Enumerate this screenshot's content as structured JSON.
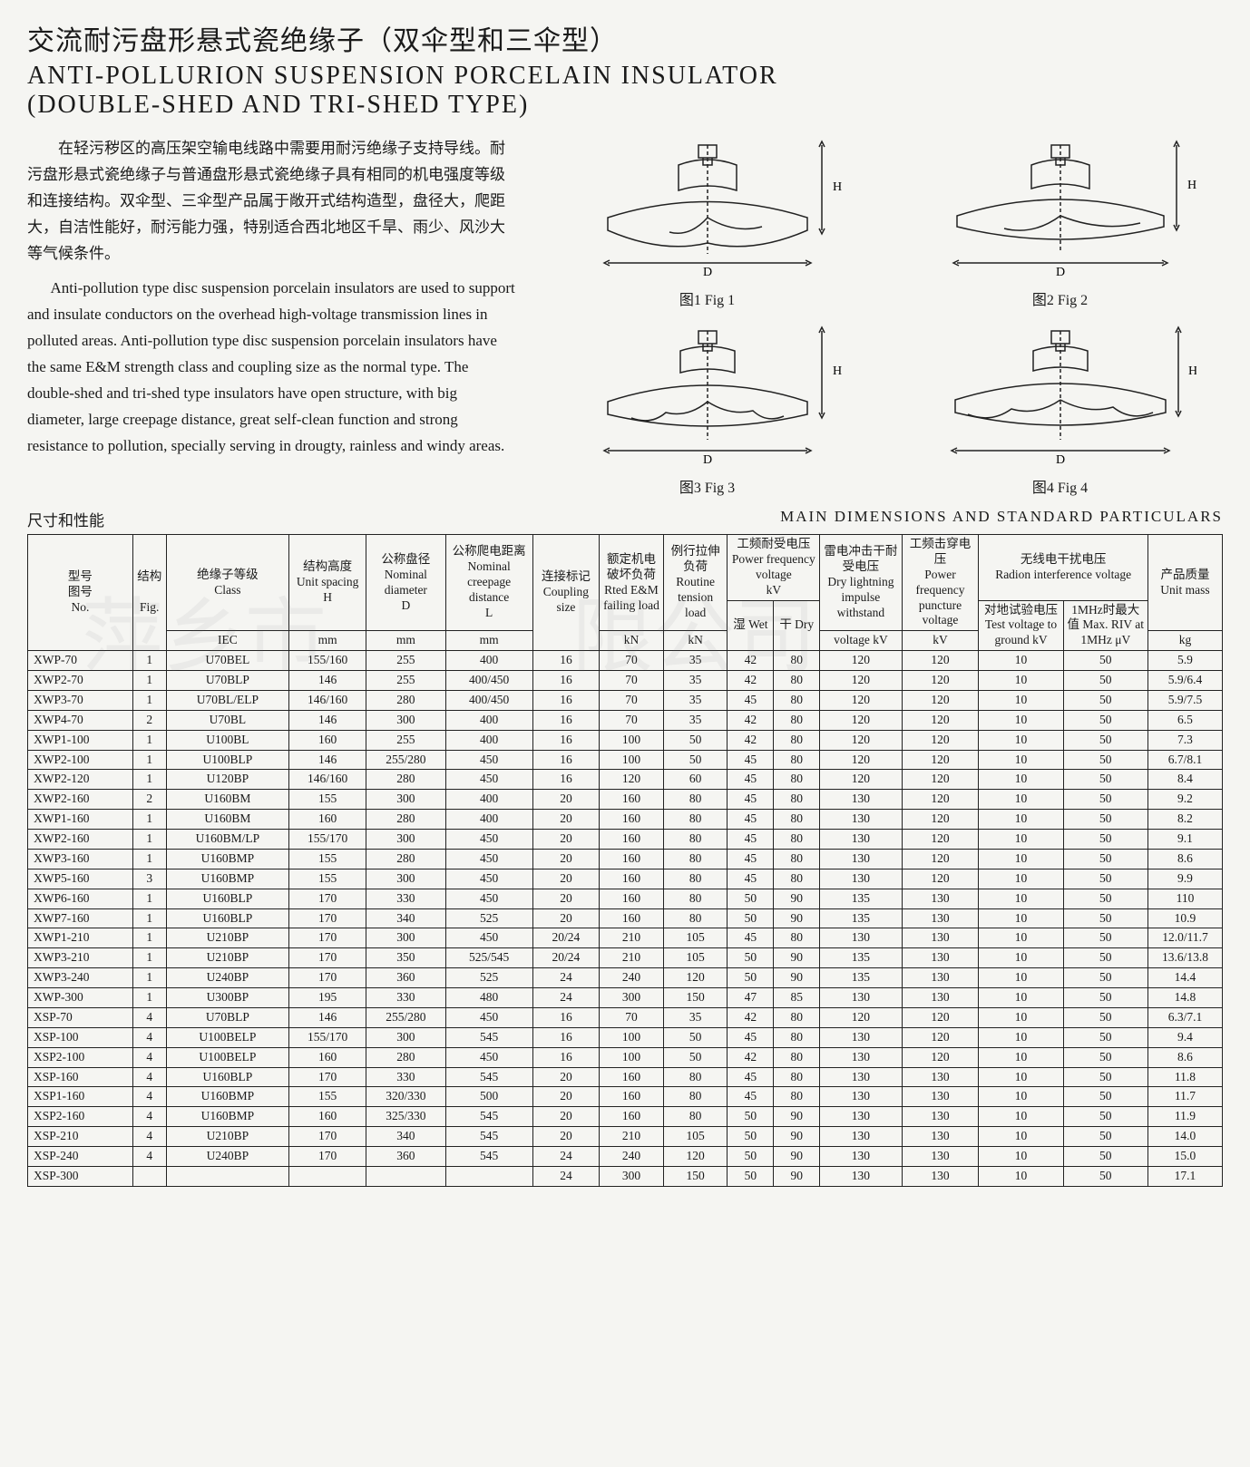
{
  "title_cn": "交流耐污盘形悬式瓷绝缘子（双伞型和三伞型）",
  "title_en1": "ANTI-POLLURION SUSPENSION PORCELAIN INSULATOR",
  "title_en2": "(DOUBLE-SHED AND TRI-SHED TYPE)",
  "para_cn": "在轻污秽区的高压架空输电线路中需要用耐污绝缘子支持导线。耐污盘形悬式瓷绝缘子与普通盘形悬式瓷绝缘子具有相同的机电强度等级和连接结构。双伞型、三伞型产品属于敞开式结构造型，盘径大，爬距大，自洁性能好，耐污能力强，特别适合西北地区千旱、雨少、风沙大等气候条件。",
  "para_en": "Anti-pollution type disc suspension porcelain insulators are used to support and insulate conductors on the overhead high-voltage transmission lines in polluted areas. Anti-pollution type disc suspension porcelain insulators have the same E&M strength class and coupling size as the normal type. The double-shed and tri-shed type insulators have open structure, with big diameter, large creepage distance, great self-clean function and strong resistance to pollution, specially serving in drougty, rainless and windy areas.",
  "figs": {
    "f1": "图1  Fig 1",
    "f2": "图2  Fig 2",
    "f3": "图3  Fig 3",
    "f4": "图4  Fig 4"
  },
  "dims_left": "尺寸和性能",
  "dims_right": "MAIN DIMENSIONS AND STANDARD PARTICULARS",
  "watermark": "萍乡市　　　限公司",
  "header": {
    "c0a": "型号",
    "c0b": "图号",
    "c0c": "No.",
    "c1a": "结构",
    "c1b": "Fig.",
    "c2a": "绝缘子等级",
    "c2b": "Class",
    "c2c": "IEC",
    "c3a": "结构高度",
    "c3b": "Unit spacing",
    "c3c": "H",
    "c3d": "mm",
    "c4a": "公称盘径",
    "c4b": "Nominal diameter",
    "c4c": "D",
    "c4d": "mm",
    "c5a": "公称爬电距离",
    "c5b": "Nominal creepage distance",
    "c5c": "L",
    "c5d": "mm",
    "c6a": "连接标记",
    "c6b": "Coupling size",
    "c7a": "额定机电破坏负荷",
    "c7b": "Rted E&M failing load",
    "c7c": "kN",
    "c8a": "例行拉伸负荷",
    "c8b": "Routine tension load",
    "c8c": "kN",
    "c9a": "工频耐受电压 Power frequency voltage",
    "c9b": "kV",
    "c9wet": "湿 Wet",
    "c9dry": "干 Dry",
    "c10a": "雷电冲击干耐受电压",
    "c10b": "Dry lightning impulse withstand",
    "c10c": "voltage kV",
    "c11a": "工频击穿电压",
    "c11b": "Power frequency puncture voltage",
    "c11c": "kV",
    "c12a": "无线电干扰电压",
    "c12b": "Radion interference voltage",
    "c12ca": "对地试验电压 Test voltage to ground kV",
    "c12da": "1MHz时最大值 Max. RIV at 1MHz μV",
    "c13a": "产品质量",
    "c13b": "Unit mass",
    "c13c": "kg"
  },
  "rows": [
    [
      "XWP-70",
      "1",
      "U70BEL",
      "155/160",
      "255",
      "400",
      "16",
      "70",
      "35",
      "42",
      "80",
      "120",
      "120",
      "10",
      "50",
      "5.9"
    ],
    [
      "XWP2-70",
      "1",
      "U70BLP",
      "146",
      "255",
      "400/450",
      "16",
      "70",
      "35",
      "42",
      "80",
      "120",
      "120",
      "10",
      "50",
      "5.9/6.4"
    ],
    [
      "XWP3-70",
      "1",
      "U70BL/ELP",
      "146/160",
      "280",
      "400/450",
      "16",
      "70",
      "35",
      "45",
      "80",
      "120",
      "120",
      "10",
      "50",
      "5.9/7.5"
    ],
    [
      "XWP4-70",
      "2",
      "U70BL",
      "146",
      "300",
      "400",
      "16",
      "70",
      "35",
      "42",
      "80",
      "120",
      "120",
      "10",
      "50",
      "6.5"
    ],
    [
      "XWP1-100",
      "1",
      "U100BL",
      "160",
      "255",
      "400",
      "16",
      "100",
      "50",
      "42",
      "80",
      "120",
      "120",
      "10",
      "50",
      "7.3"
    ],
    [
      "XWP2-100",
      "1",
      "U100BLP",
      "146",
      "255/280",
      "450",
      "16",
      "100",
      "50",
      "45",
      "80",
      "120",
      "120",
      "10",
      "50",
      "6.7/8.1"
    ],
    [
      "XWP2-120",
      "1",
      "U120BP",
      "146/160",
      "280",
      "450",
      "16",
      "120",
      "60",
      "45",
      "80",
      "120",
      "120",
      "10",
      "50",
      "8.4"
    ],
    [
      "XWP2-160",
      "2",
      "U160BM",
      "155",
      "300",
      "400",
      "20",
      "160",
      "80",
      "45",
      "80",
      "130",
      "120",
      "10",
      "50",
      "9.2"
    ],
    [
      "XWP1-160",
      "1",
      "U160BM",
      "160",
      "280",
      "400",
      "20",
      "160",
      "80",
      "45",
      "80",
      "130",
      "120",
      "10",
      "50",
      "8.2"
    ],
    [
      "XWP2-160",
      "1",
      "U160BM/LP",
      "155/170",
      "300",
      "450",
      "20",
      "160",
      "80",
      "45",
      "80",
      "130",
      "120",
      "10",
      "50",
      "9.1"
    ],
    [
      "XWP3-160",
      "1",
      "U160BMP",
      "155",
      "280",
      "450",
      "20",
      "160",
      "80",
      "45",
      "80",
      "130",
      "120",
      "10",
      "50",
      "8.6"
    ],
    [
      "XWP5-160",
      "3",
      "U160BMP",
      "155",
      "300",
      "450",
      "20",
      "160",
      "80",
      "45",
      "80",
      "130",
      "120",
      "10",
      "50",
      "9.9"
    ],
    [
      "XWP6-160",
      "1",
      "U160BLP",
      "170",
      "330",
      "450",
      "20",
      "160",
      "80",
      "50",
      "90",
      "135",
      "130",
      "10",
      "50",
      "110"
    ],
    [
      "XWP7-160",
      "1",
      "U160BLP",
      "170",
      "340",
      "525",
      "20",
      "160",
      "80",
      "50",
      "90",
      "135",
      "130",
      "10",
      "50",
      "10.9"
    ],
    [
      "XWP1-210",
      "1",
      "U210BP",
      "170",
      "300",
      "450",
      "20/24",
      "210",
      "105",
      "45",
      "80",
      "130",
      "130",
      "10",
      "50",
      "12.0/11.7"
    ],
    [
      "XWP3-210",
      "1",
      "U210BP",
      "170",
      "350",
      "525/545",
      "20/24",
      "210",
      "105",
      "50",
      "90",
      "135",
      "130",
      "10",
      "50",
      "13.6/13.8"
    ],
    [
      "XWP3-240",
      "1",
      "U240BP",
      "170",
      "360",
      "525",
      "24",
      "240",
      "120",
      "50",
      "90",
      "135",
      "130",
      "10",
      "50",
      "14.4"
    ],
    [
      "XWP-300",
      "1",
      "U300BP",
      "195",
      "330",
      "480",
      "24",
      "300",
      "150",
      "47",
      "85",
      "130",
      "130",
      "10",
      "50",
      "14.8"
    ],
    [
      "XSP-70",
      "4",
      "U70BLP",
      "146",
      "255/280",
      "450",
      "16",
      "70",
      "35",
      "42",
      "80",
      "120",
      "120",
      "10",
      "50",
      "6.3/7.1"
    ],
    [
      "XSP-100",
      "4",
      "U100BELP",
      "155/170",
      "300",
      "545",
      "16",
      "100",
      "50",
      "45",
      "80",
      "130",
      "120",
      "10",
      "50",
      "9.4"
    ],
    [
      "XSP2-100",
      "4",
      "U100BELP",
      "160",
      "280",
      "450",
      "16",
      "100",
      "50",
      "42",
      "80",
      "130",
      "120",
      "10",
      "50",
      "8.6"
    ],
    [
      "XSP-160",
      "4",
      "U160BLP",
      "170",
      "330",
      "545",
      "20",
      "160",
      "80",
      "45",
      "80",
      "130",
      "130",
      "10",
      "50",
      "11.8"
    ],
    [
      "XSP1-160",
      "4",
      "U160BMP",
      "155",
      "320/330",
      "500",
      "20",
      "160",
      "80",
      "45",
      "80",
      "130",
      "130",
      "10",
      "50",
      "11.7"
    ],
    [
      "XSP2-160",
      "4",
      "U160BMP",
      "160",
      "325/330",
      "545",
      "20",
      "160",
      "80",
      "50",
      "90",
      "130",
      "130",
      "10",
      "50",
      "11.9"
    ],
    [
      "XSP-210",
      "4",
      "U210BP",
      "170",
      "340",
      "545",
      "20",
      "210",
      "105",
      "50",
      "90",
      "130",
      "130",
      "10",
      "50",
      "14.0"
    ],
    [
      "XSP-240",
      "4",
      "U240BP",
      "170",
      "360",
      "545",
      "24",
      "240",
      "120",
      "50",
      "90",
      "130",
      "130",
      "10",
      "50",
      "15.0"
    ],
    [
      "XSP-300",
      "",
      "",
      "",
      "",
      "",
      "24",
      "300",
      "150",
      "50",
      "90",
      "130",
      "130",
      "10",
      "50",
      "17.1"
    ]
  ],
  "colwidths": [
    "82",
    "26",
    "96",
    "60",
    "62",
    "68",
    "52",
    "50",
    "50",
    "36",
    "36",
    "64",
    "60",
    "66",
    "66",
    "58"
  ]
}
